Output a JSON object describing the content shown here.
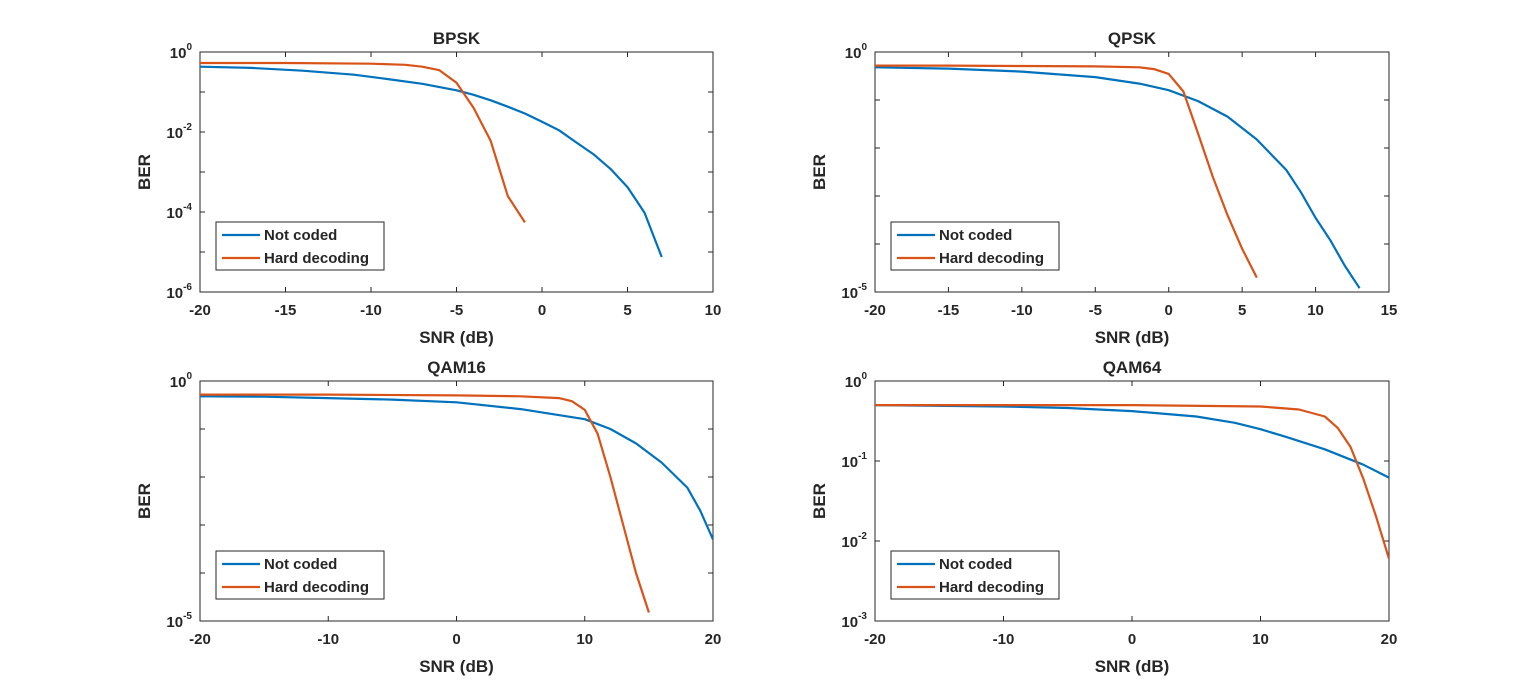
{
  "colors": {
    "not_coded": "#0072BD",
    "hard_decoding": "#D95319",
    "axes": "#262626"
  },
  "chart_data": [
    {
      "type": "line",
      "title": "BPSK",
      "xlabel": "SNR (dB)",
      "ylabel": "BER",
      "yscale": "log",
      "xlim": [
        -20,
        10
      ],
      "ylim_exp": [
        -6,
        0
      ],
      "xticks": [
        "-20",
        "-15",
        "-10",
        "-5",
        "0",
        "5",
        "10"
      ],
      "xtick_values": [
        -20,
        -15,
        -10,
        -5,
        0,
        5,
        10
      ],
      "yticks": [
        {
          "base": "10",
          "exp": "-6"
        },
        {
          "base": "10",
          "exp": "-4"
        },
        {
          "base": "10",
          "exp": "-2"
        },
        {
          "base": "10",
          "exp": "0"
        }
      ],
      "ytick_exps": [
        -6,
        -4,
        -2,
        0
      ],
      "legend_position": "bottom-left",
      "series": [
        {
          "name": "Not coded",
          "color": "#0072BD",
          "x": [
            -20,
            -17,
            -14,
            -11,
            -9,
            -7,
            -5,
            -4,
            -3,
            -2,
            -1,
            0,
            1,
            2,
            3,
            4,
            5,
            6,
            7
          ],
          "y": [
            0.43,
            0.4,
            0.34,
            0.27,
            0.21,
            0.16,
            0.11,
            0.085,
            0.062,
            0.043,
            0.029,
            0.018,
            0.011,
            0.0055,
            0.0028,
            0.0012,
            0.00042,
            9.5e-05,
            7.5e-06
          ]
        },
        {
          "name": "Hard decoding",
          "color": "#D95319",
          "x": [
            -20,
            -15,
            -10,
            -8,
            -7,
            -6,
            -5,
            -4,
            -3,
            -2,
            -1
          ],
          "y": [
            0.53,
            0.53,
            0.51,
            0.48,
            0.43,
            0.35,
            0.17,
            0.04,
            0.006,
            0.00025,
            5.5e-05
          ]
        }
      ]
    },
    {
      "type": "line",
      "title": "QPSK",
      "xlabel": "SNR (dB)",
      "ylabel": "BER",
      "yscale": "log",
      "xlim": [
        -20,
        15
      ],
      "ylim_exp": [
        -5,
        0
      ],
      "xticks": [
        "-20",
        "-15",
        "-10",
        "-5",
        "0",
        "5",
        "10",
        "15"
      ],
      "xtick_values": [
        -20,
        -15,
        -10,
        -5,
        0,
        5,
        10,
        15
      ],
      "yticks": [
        {
          "base": "10",
          "exp": "-5"
        },
        {
          "base": "10",
          "exp": "0"
        }
      ],
      "ytick_exps": [
        -5,
        0
      ],
      "legend_position": "bottom-left",
      "series": [
        {
          "name": "Not coded",
          "color": "#0072BD",
          "x": [
            -20,
            -15,
            -10,
            -5,
            -2,
            0,
            2,
            4,
            6,
            8,
            9,
            10,
            11,
            12,
            13
          ],
          "y": [
            0.48,
            0.45,
            0.39,
            0.3,
            0.22,
            0.16,
            0.095,
            0.045,
            0.015,
            0.0035,
            0.0012,
            0.00035,
            0.00012,
            3.5e-05,
            1.2e-05
          ]
        },
        {
          "name": "Hard decoding",
          "color": "#D95319",
          "x": [
            -20,
            -15,
            -10,
            -5,
            -2,
            -1,
            0,
            1,
            2,
            3,
            4,
            5,
            6
          ],
          "y": [
            0.52,
            0.52,
            0.51,
            0.5,
            0.48,
            0.44,
            0.35,
            0.15,
            0.02,
            0.0025,
            0.0004,
            8e-05,
            2e-05
          ]
        }
      ]
    },
    {
      "type": "line",
      "title": "QAM16",
      "xlabel": "SNR (dB)",
      "ylabel": "BER",
      "yscale": "log",
      "xlim": [
        -20,
        20
      ],
      "ylim_exp": [
        -5,
        0
      ],
      "xticks": [
        "-20",
        "-10",
        "0",
        "10",
        "20"
      ],
      "xtick_values": [
        -20,
        -10,
        0,
        10,
        20
      ],
      "yticks": [
        {
          "base": "10",
          "exp": "-5"
        },
        {
          "base": "10",
          "exp": "0"
        }
      ],
      "ytick_exps": [
        -5,
        0
      ],
      "legend_position": "bottom-left",
      "series": [
        {
          "name": "Not coded",
          "color": "#0072BD",
          "x": [
            -20,
            -15,
            -10,
            -5,
            0,
            5,
            10,
            12,
            14,
            16,
            18,
            19,
            20
          ],
          "y": [
            0.48,
            0.47,
            0.44,
            0.41,
            0.36,
            0.26,
            0.16,
            0.1,
            0.05,
            0.02,
            0.006,
            0.002,
            0.0005
          ]
        },
        {
          "name": "Hard decoding",
          "color": "#D95319",
          "x": [
            -20,
            -10,
            0,
            5,
            8,
            9,
            10,
            11,
            12,
            13,
            14,
            15
          ],
          "y": [
            0.52,
            0.52,
            0.5,
            0.48,
            0.44,
            0.38,
            0.25,
            0.08,
            0.01,
            0.001,
            0.0001,
            1.5e-05
          ]
        }
      ]
    },
    {
      "type": "line",
      "title": "QAM64",
      "xlabel": "SNR (dB)",
      "ylabel": "BER",
      "yscale": "log",
      "xlim": [
        -20,
        20
      ],
      "ylim_exp": [
        -3,
        0
      ],
      "xticks": [
        "-20",
        "-10",
        "0",
        "10",
        "20"
      ],
      "xtick_values": [
        -20,
        -10,
        0,
        10,
        20
      ],
      "yticks": [
        {
          "base": "10",
          "exp": "-3"
        },
        {
          "base": "10",
          "exp": "-2"
        },
        {
          "base": "10",
          "exp": "-1"
        },
        {
          "base": "10",
          "exp": "0"
        }
      ],
      "ytick_exps": [
        -3,
        -2,
        -1,
        0
      ],
      "legend_position": "bottom-left",
      "series": [
        {
          "name": "Not coded",
          "color": "#0072BD",
          "x": [
            -20,
            -10,
            -5,
            0,
            5,
            8,
            10,
            12,
            15,
            18,
            20
          ],
          "y": [
            0.5,
            0.48,
            0.46,
            0.42,
            0.36,
            0.3,
            0.25,
            0.2,
            0.14,
            0.09,
            0.062
          ]
        },
        {
          "name": "Hard decoding",
          "color": "#D95319",
          "x": [
            -20,
            -10,
            0,
            10,
            13,
            15,
            16,
            17,
            18,
            19,
            20
          ],
          "y": [
            0.5,
            0.5,
            0.5,
            0.48,
            0.44,
            0.36,
            0.26,
            0.15,
            0.06,
            0.02,
            0.006
          ]
        }
      ]
    }
  ]
}
